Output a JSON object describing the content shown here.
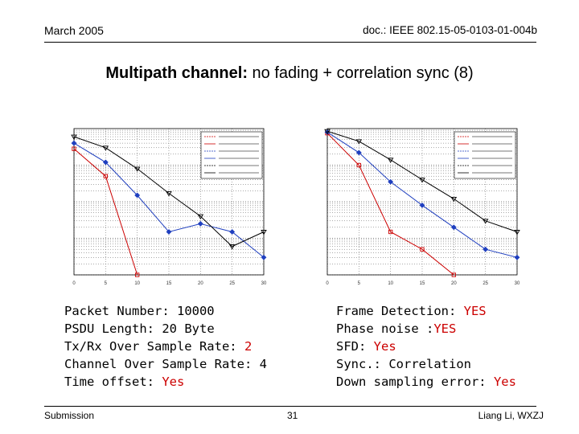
{
  "header": {
    "date": "March 2005",
    "doc_id": "doc.: IEEE 802.15-05-0103-01-004b"
  },
  "title": {
    "bold": "Multipath channel:",
    "rest": " no fading + correlation sync (8)"
  },
  "params_left": [
    {
      "label": "Packet Number: ",
      "value": "10000",
      "highlight": false
    },
    {
      "label": "PSDU Length: ",
      "value": "20 Byte",
      "highlight": false
    },
    {
      "label": "Tx/Rx Over Sample Rate: ",
      "value": "2",
      "highlight": true
    },
    {
      "label": "Channel Over Sample Rate: ",
      "value": "4",
      "highlight": false
    },
    {
      "label": "Time offset: ",
      "value": "Yes",
      "highlight": true
    }
  ],
  "params_right": [
    {
      "label": "Frame Detection: ",
      "value": "YES",
      "highlight": true
    },
    {
      "label": "Phase noise :",
      "value": "YES",
      "highlight": true
    },
    {
      "label": "SFD: ",
      "value": "Yes",
      "highlight": true
    },
    {
      "label": "Sync.: ",
      "value": "Correlation",
      "highlight": false
    },
    {
      "label": "Down sampling error: ",
      "value": "Yes",
      "highlight": true
    }
  ],
  "footer": {
    "left": "Submission",
    "page": "31",
    "right": "Liang Li, WXZJ"
  },
  "colors": {
    "accent": "#cc0000",
    "blue": "#1f3fbf",
    "black": "#000000"
  },
  "chart_data": [
    {
      "type": "line",
      "log_y": true,
      "x": [
        0,
        5,
        10,
        15,
        20,
        25,
        30
      ],
      "xticks": [
        "0",
        "5",
        "10",
        "15",
        "20",
        "25",
        "30"
      ],
      "ylim": [
        0.0001,
        1
      ],
      "grid": true,
      "legend_position": "top-right",
      "series": [
        {
          "color": "#cc0000",
          "marker": "square",
          "points": [
            [
              0,
              0.28
            ],
            [
              5,
              0.05
            ],
            [
              10,
              0.0001
            ]
          ]
        },
        {
          "color": "#1f3fbf",
          "marker": "diamond",
          "points": [
            [
              0,
              0.4
            ],
            [
              5,
              0.12
            ],
            [
              10,
              0.015
            ],
            [
              15,
              0.0015
            ],
            [
              20,
              0.0025
            ],
            [
              25,
              0.0015
            ],
            [
              30,
              0.0003
            ]
          ]
        },
        {
          "color": "#000000",
          "marker": "triangle-down",
          "points": [
            [
              0,
              0.6
            ],
            [
              5,
              0.3
            ],
            [
              10,
              0.08
            ],
            [
              15,
              0.017
            ],
            [
              20,
              0.004
            ],
            [
              25,
              0.0006
            ],
            [
              30,
              0.0015
            ]
          ]
        }
      ]
    },
    {
      "type": "line",
      "log_y": true,
      "x": [
        0,
        5,
        10,
        15,
        20,
        25,
        30
      ],
      "xticks": [
        "0",
        "5",
        "10",
        "15",
        "20",
        "25",
        "30"
      ],
      "ylim": [
        0.0001,
        1
      ],
      "grid": true,
      "legend_position": "top-right",
      "series": [
        {
          "color": "#cc0000",
          "marker": "square",
          "points": [
            [
              0,
              0.75
            ],
            [
              5,
              0.1
            ],
            [
              10,
              0.0015
            ],
            [
              15,
              0.0005
            ],
            [
              20,
              0.0001
            ]
          ]
        },
        {
          "color": "#1f3fbf",
          "marker": "diamond",
          "points": [
            [
              0,
              0.8
            ],
            [
              5,
              0.22
            ],
            [
              10,
              0.035
            ],
            [
              15,
              0.008
            ],
            [
              20,
              0.002
            ],
            [
              25,
              0.0005
            ],
            [
              30,
              0.0003
            ]
          ]
        },
        {
          "color": "#000000",
          "marker": "triangle-down",
          "points": [
            [
              0,
              0.85
            ],
            [
              5,
              0.45
            ],
            [
              10,
              0.14
            ],
            [
              15,
              0.04
            ],
            [
              20,
              0.012
            ],
            [
              25,
              0.003
            ],
            [
              30,
              0.0015
            ]
          ]
        }
      ]
    }
  ]
}
